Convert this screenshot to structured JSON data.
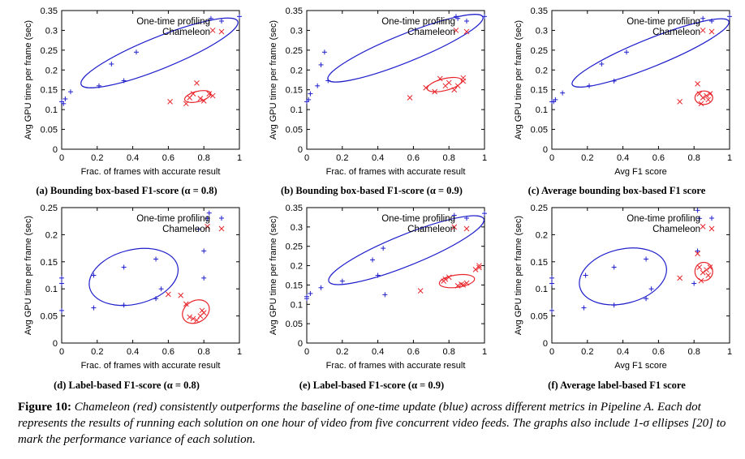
{
  "colors": {
    "one_time": "#1f1fcc",
    "chameleon": "#e8252b"
  },
  "figure": {
    "caption_label": "Figure 10:",
    "caption_text": "Chameleon (red) consistently outperforms the baseline of one-time update (blue) across different metrics in Pipeline A. Each dot represents the results of running each solution on one hour of video from five concurrent video feeds. The graphs also include 1-σ ellipses [20] to mark the performance variance of each solution."
  },
  "chart_data": [
    {
      "type": "scatter",
      "caption": "(a) Bounding box-based F1-score (α = 0.8)",
      "xlabel": "Frac. of frames with accurate result",
      "ylabel": "Avg GPU time per frame (sec)",
      "xlim": [
        0,
        1
      ],
      "ylim": [
        0,
        0.35
      ],
      "xticks": [
        "0",
        "0.2",
        "0.4",
        "0.6",
        "0.8",
        "1"
      ],
      "yticks": [
        "0",
        "0.05",
        "0.1",
        "0.15",
        "0.2",
        "0.25",
        "0.3",
        "0.35"
      ],
      "grid": false,
      "legend_position": "top-right",
      "series": [
        {
          "name": "One-time profiling",
          "marker": "+",
          "color": "#1f1fcc",
          "points": [
            [
              0.0,
              0.12
            ],
            [
              0.01,
              0.115
            ],
            [
              0.02,
              0.127
            ],
            [
              0.05,
              0.145
            ],
            [
              0.21,
              0.16
            ],
            [
              0.28,
              0.215
            ],
            [
              0.35,
              0.173
            ],
            [
              0.42,
              0.245
            ],
            [
              0.84,
              0.33
            ],
            [
              1.0,
              0.335
            ]
          ],
          "ellipse": {
            "cx": 0.55,
            "cy": 0.243,
            "rx": 0.475,
            "ry": 0.04,
            "angle": -22
          }
        },
        {
          "name": "Chameleon",
          "marker": "x",
          "color": "#e8252b",
          "points": [
            [
              0.61,
              0.12
            ],
            [
              0.7,
              0.115
            ],
            [
              0.72,
              0.13
            ],
            [
              0.74,
              0.14
            ],
            [
              0.76,
              0.167
            ],
            [
              0.78,
              0.128
            ],
            [
              0.8,
              0.122
            ],
            [
              0.83,
              0.14
            ],
            [
              0.85,
              0.135
            ],
            [
              0.85,
              0.3
            ]
          ],
          "ellipse": {
            "cx": 0.765,
            "cy": 0.133,
            "rx": 0.075,
            "ry": 0.013,
            "angle": -14
          }
        }
      ]
    },
    {
      "type": "scatter",
      "caption": "(b) Bounding box-based F1-score (α = 0.9)",
      "xlabel": "Frac. of frames with accurate result",
      "ylabel": "Avg GPU time per frame (sec)",
      "xlim": [
        0,
        1
      ],
      "ylim": [
        0,
        0.35
      ],
      "xticks": [
        "0",
        "0.2",
        "0.4",
        "0.6",
        "0.8",
        "1"
      ],
      "yticks": [
        "0",
        "0.05",
        "0.1",
        "0.15",
        "0.2",
        "0.25",
        "0.3",
        "0.35"
      ],
      "grid": false,
      "legend_position": "top-right",
      "series": [
        {
          "name": "One-time profiling",
          "marker": "+",
          "color": "#1f1fcc",
          "points": [
            [
              0.0,
              0.12
            ],
            [
              0.01,
              0.125
            ],
            [
              0.02,
              0.14
            ],
            [
              0.06,
              0.16
            ],
            [
              0.08,
              0.213
            ],
            [
              0.1,
              0.245
            ],
            [
              0.12,
              0.173
            ],
            [
              0.85,
              0.33
            ],
            [
              0.84,
              0.335
            ],
            [
              1.0,
              0.335
            ]
          ],
          "ellipse": {
            "cx": 0.555,
            "cy": 0.255,
            "rx": 0.47,
            "ry": 0.035,
            "angle": -22
          }
        },
        {
          "name": "Chameleon",
          "marker": "x",
          "color": "#e8252b",
          "points": [
            [
              0.58,
              0.13
            ],
            [
              0.67,
              0.155
            ],
            [
              0.72,
              0.145
            ],
            [
              0.75,
              0.178
            ],
            [
              0.78,
              0.16
            ],
            [
              0.8,
              0.168
            ],
            [
              0.83,
              0.15
            ],
            [
              0.85,
              0.16
            ],
            [
              0.88,
              0.18
            ],
            [
              0.88,
              0.172
            ],
            [
              0.84,
              0.3
            ]
          ],
          "ellipse": {
            "cx": 0.775,
            "cy": 0.163,
            "rx": 0.1,
            "ry": 0.015,
            "angle": -14
          }
        }
      ]
    },
    {
      "type": "scatter",
      "caption": "(c) Average bounding box-based F1 score",
      "xlabel": "Avg F1 score",
      "ylabel": "Avg GPU time per frame (sec)",
      "xlim": [
        0,
        1
      ],
      "ylim": [
        0,
        0.35
      ],
      "xticks": [
        "0",
        "0.2",
        "0.4",
        "0.6",
        "0.8",
        "1"
      ],
      "yticks": [
        "0",
        "0.05",
        "0.1",
        "0.15",
        "0.2",
        "0.25",
        "0.3",
        "0.35"
      ],
      "grid": false,
      "legend_position": "top-right",
      "series": [
        {
          "name": "One-time profiling",
          "marker": "+",
          "color": "#1f1fcc",
          "points": [
            [
              0.0,
              0.12
            ],
            [
              0.01,
              0.12
            ],
            [
              0.02,
              0.125
            ],
            [
              0.06,
              0.142
            ],
            [
              0.21,
              0.16
            ],
            [
              0.28,
              0.215
            ],
            [
              0.35,
              0.172
            ],
            [
              0.42,
              0.245
            ],
            [
              0.85,
              0.33
            ],
            [
              1.0,
              0.335
            ]
          ],
          "ellipse": {
            "cx": 0.555,
            "cy": 0.243,
            "rx": 0.475,
            "ry": 0.035,
            "angle": -22
          }
        },
        {
          "name": "Chameleon",
          "marker": "x",
          "color": "#e8252b",
          "points": [
            [
              0.72,
              0.12
            ],
            [
              0.82,
              0.165
            ],
            [
              0.83,
              0.14
            ],
            [
              0.84,
              0.115
            ],
            [
              0.85,
              0.13
            ],
            [
              0.87,
              0.135
            ],
            [
              0.88,
              0.125
            ],
            [
              0.89,
              0.14
            ],
            [
              0.85,
              0.3
            ]
          ],
          "ellipse": {
            "cx": 0.855,
            "cy": 0.13,
            "rx": 0.05,
            "ry": 0.017,
            "angle": 0
          }
        }
      ]
    },
    {
      "type": "scatter",
      "caption": "(d) Label-based F1-score (α = 0.8)",
      "xlabel": "Frac. of frames with accurate result",
      "ylabel": "Avg GPU time per frame (sec)",
      "xlim": [
        0,
        1
      ],
      "ylim": [
        0,
        0.25
      ],
      "xticks": [
        "0",
        "0.2",
        "0.4",
        "0.6",
        "0.8",
        "1"
      ],
      "yticks": [
        "0",
        "0.05",
        "0.1",
        "0.15",
        "0.2",
        "0.25"
      ],
      "grid": false,
      "legend_position": "top-right",
      "series": [
        {
          "name": "One-time profiling",
          "marker": "+",
          "color": "#1f1fcc",
          "points": [
            [
              0.0,
              0.12
            ],
            [
              0.0,
              0.11
            ],
            [
              0.0,
              0.06
            ],
            [
              0.18,
              0.065
            ],
            [
              0.18,
              0.125
            ],
            [
              0.35,
              0.14
            ],
            [
              0.35,
              0.07
            ],
            [
              0.53,
              0.155
            ],
            [
              0.53,
              0.082
            ],
            [
              0.56,
              0.1
            ],
            [
              0.77,
              0.21
            ],
            [
              0.8,
              0.17
            ],
            [
              0.8,
              0.12
            ],
            [
              0.82,
              0.23
            ],
            [
              0.83,
              0.24
            ]
          ],
          "ellipse": {
            "cx": 0.405,
            "cy": 0.122,
            "rx": 0.255,
            "ry": 0.05,
            "angle": -14
          }
        },
        {
          "name": "Chameleon",
          "marker": "x",
          "color": "#e8252b",
          "points": [
            [
              0.6,
              0.09
            ],
            [
              0.67,
              0.088
            ],
            [
              0.7,
              0.072
            ],
            [
              0.72,
              0.048
            ],
            [
              0.74,
              0.045
            ],
            [
              0.76,
              0.042
            ],
            [
              0.78,
              0.05
            ],
            [
              0.79,
              0.06
            ],
            [
              0.8,
              0.056
            ],
            [
              0.82,
              0.215
            ]
          ],
          "ellipse": {
            "cx": 0.755,
            "cy": 0.058,
            "rx": 0.08,
            "ry": 0.02,
            "angle": -30
          }
        }
      ]
    },
    {
      "type": "scatter",
      "caption": "(e) Label-based F1-score (α = 0.9)",
      "xlabel": "Frac. of frames with accurate result",
      "ylabel": "Avg GPU time per frame (sec)",
      "xlim": [
        0,
        1
      ],
      "ylim": [
        0,
        0.35
      ],
      "xticks": [
        "0",
        "0.2",
        "0.4",
        "0.6",
        "0.8",
        "1"
      ],
      "yticks": [
        "0",
        "0.05",
        "0.1",
        "0.15",
        "0.2",
        "0.25",
        "0.3",
        "0.35"
      ],
      "grid": false,
      "legend_position": "top-right",
      "series": [
        {
          "name": "One-time profiling",
          "marker": "+",
          "color": "#1f1fcc",
          "points": [
            [
              0.0,
              0.115
            ],
            [
              0.0,
              0.12
            ],
            [
              0.02,
              0.128
            ],
            [
              0.08,
              0.143
            ],
            [
              0.2,
              0.16
            ],
            [
              0.37,
              0.215
            ],
            [
              0.4,
              0.175
            ],
            [
              0.43,
              0.245
            ],
            [
              0.44,
              0.125
            ],
            [
              0.83,
              0.33
            ],
            [
              1.0,
              0.335
            ]
          ],
          "ellipse": {
            "cx": 0.56,
            "cy": 0.24,
            "rx": 0.47,
            "ry": 0.04,
            "angle": -22
          }
        },
        {
          "name": "Chameleon",
          "marker": "x",
          "color": "#e8252b",
          "points": [
            [
              0.64,
              0.135
            ],
            [
              0.77,
              0.16
            ],
            [
              0.78,
              0.165
            ],
            [
              0.8,
              0.17
            ],
            [
              0.85,
              0.148
            ],
            [
              0.87,
              0.152
            ],
            [
              0.88,
              0.15
            ],
            [
              0.9,
              0.155
            ],
            [
              0.95,
              0.19
            ],
            [
              0.97,
              0.195
            ],
            [
              0.97,
              0.2
            ],
            [
              0.83,
              0.3
            ]
          ],
          "ellipse": {
            "cx": 0.845,
            "cy": 0.16,
            "rx": 0.1,
            "ry": 0.016,
            "angle": -8
          }
        }
      ]
    },
    {
      "type": "scatter",
      "caption": "(f) Average label-based F1 score",
      "xlabel": "Avg F1 score",
      "ylabel": "Avg GPU time per frame (sec)",
      "xlim": [
        0,
        1
      ],
      "ylim": [
        0,
        0.25
      ],
      "xticks": [
        "0",
        "0.2",
        "0.4",
        "0.6",
        "0.8",
        "1"
      ],
      "yticks": [
        "0",
        "0.05",
        "0.1",
        "0.15",
        "0.2",
        "0.25"
      ],
      "grid": false,
      "legend_position": "top-right",
      "series": [
        {
          "name": "One-time profiling",
          "marker": "+",
          "color": "#1f1fcc",
          "points": [
            [
              0.0,
              0.12
            ],
            [
              0.0,
              0.11
            ],
            [
              0.0,
              0.06
            ],
            [
              0.18,
              0.065
            ],
            [
              0.19,
              0.125
            ],
            [
              0.35,
              0.14
            ],
            [
              0.35,
              0.07
            ],
            [
              0.53,
              0.155
            ],
            [
              0.53,
              0.082
            ],
            [
              0.56,
              0.1
            ],
            [
              0.8,
              0.11
            ],
            [
              0.82,
              0.17
            ],
            [
              0.83,
              0.23
            ],
            [
              0.82,
              0.245
            ]
          ],
          "ellipse": {
            "cx": 0.4,
            "cy": 0.123,
            "rx": 0.25,
            "ry": 0.05,
            "angle": -14
          }
        },
        {
          "name": "Chameleon",
          "marker": "x",
          "color": "#e8252b",
          "points": [
            [
              0.72,
              0.12
            ],
            [
              0.82,
              0.165
            ],
            [
              0.83,
              0.14
            ],
            [
              0.84,
              0.115
            ],
            [
              0.85,
              0.13
            ],
            [
              0.87,
              0.135
            ],
            [
              0.88,
              0.125
            ],
            [
              0.89,
              0.14
            ],
            [
              0.85,
              0.215
            ]
          ],
          "ellipse": {
            "cx": 0.855,
            "cy": 0.132,
            "rx": 0.05,
            "ry": 0.017,
            "angle": 0
          }
        }
      ]
    }
  ]
}
